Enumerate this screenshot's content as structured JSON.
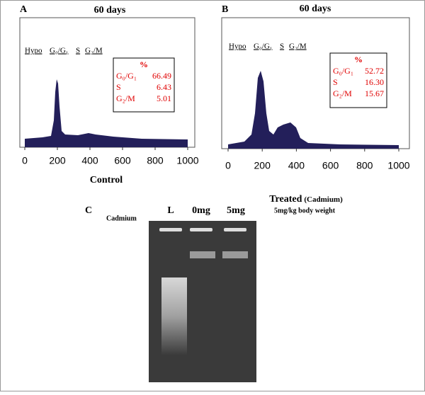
{
  "panels": [
    {
      "label": "A",
      "title": "60 days",
      "phases": [
        "Hypo",
        "G₀/G₁",
        "S",
        "G₂/M"
      ],
      "stats": {
        "header": "%",
        "rows": [
          [
            "G₀/G₁",
            "66.49"
          ],
          [
            "S",
            "6.43"
          ],
          [
            "G₂/M",
            "5.01"
          ]
        ]
      },
      "xlim": [
        0,
        1000
      ],
      "xticks": [
        0,
        200,
        400,
        600,
        800,
        1000
      ],
      "caption": "Control"
    },
    {
      "label": "B",
      "title": "60 days",
      "phases": [
        "Hypo",
        "G₀/G₁",
        "S",
        "G₂/M"
      ],
      "stats": {
        "header": "%",
        "rows": [
          [
            "G₀/G₁",
            "52.72"
          ],
          [
            "S",
            "16.30"
          ],
          [
            "G₂/M",
            "15.67"
          ]
        ]
      },
      "xlim": [
        0,
        1000
      ],
      "xticks": [
        0,
        200,
        400,
        600,
        800,
        1000
      ],
      "caption": "Treated",
      "caption_note": "(Cadmium)",
      "subcaption": "5mg/kg body weight"
    }
  ],
  "gel": {
    "label": "C",
    "row_label": "Cadmium",
    "lanes": [
      "L",
      "0mg",
      "5mg"
    ]
  }
}
